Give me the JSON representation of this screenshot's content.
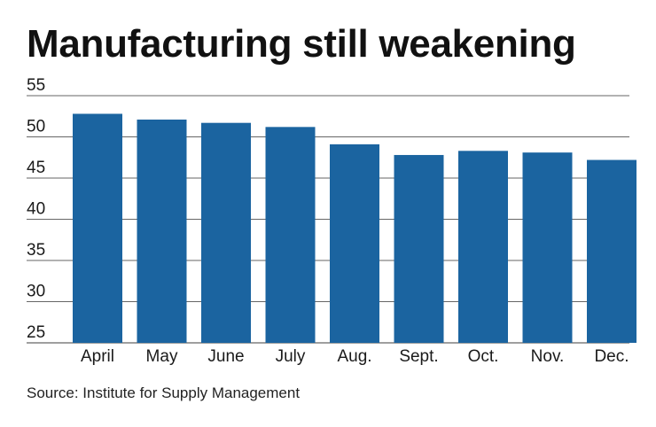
{
  "title": "Manufacturing still weakening",
  "source": "Source: Institute for Supply Management",
  "colors": {
    "bar": "#1b64a0",
    "grid": "#666666"
  },
  "chart_data": {
    "type": "bar",
    "title": "Manufacturing still weakening",
    "xlabel": "",
    "ylabel": "",
    "categories": [
      "April",
      "May",
      "June",
      "July",
      "Aug.",
      "Sept.",
      "Oct.",
      "Nov.",
      "Dec."
    ],
    "values": [
      52.8,
      52.1,
      51.7,
      51.2,
      49.1,
      47.8,
      48.3,
      48.1,
      47.2
    ],
    "ylim": [
      25,
      55
    ],
    "yticks": [
      25,
      30,
      35,
      40,
      45,
      50,
      55
    ],
    "grid": true,
    "legend": "none"
  }
}
